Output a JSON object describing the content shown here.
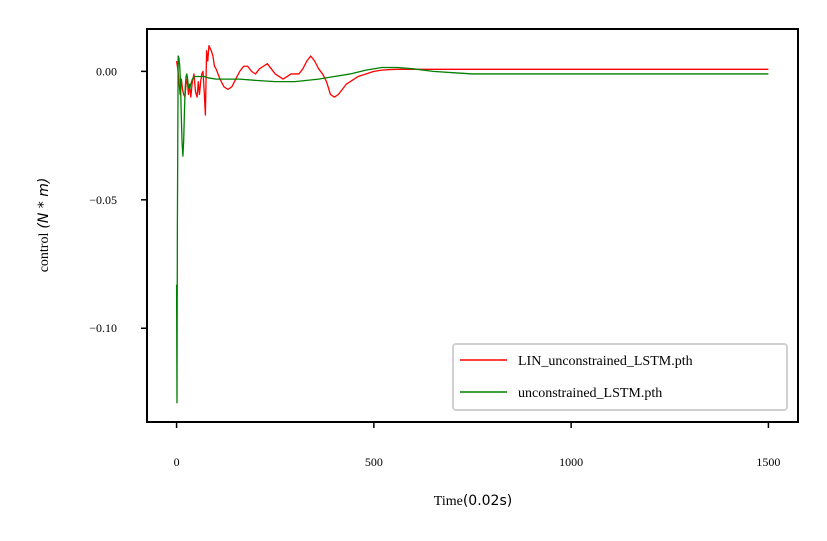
{
  "chart_data": {
    "type": "line",
    "title": "",
    "xlabel": "Time",
    "xlabel_unit": "(0.02s)",
    "ylabel": "control",
    "ylabel_unit": "(N * m)",
    "xlim": [
      -75,
      1575
    ],
    "ylim": [
      -0.1365,
      0.0165
    ],
    "xticks": [
      0,
      500,
      1000,
      1500
    ],
    "xtick_labels": [
      "0",
      "500",
      "1000",
      "1500"
    ],
    "yticks": [
      0.0,
      -0.05,
      -0.1
    ],
    "ytick_labels": [
      "0.00",
      "−0.05",
      "−0.10"
    ],
    "grid": false,
    "legend_position": "lower-right",
    "series": [
      {
        "name": "LIN_unconstrained_LSTM.pth",
        "color": "#ff0000",
        "x": [
          0,
          3,
          6,
          9,
          12,
          15,
          18,
          21,
          24,
          27,
          30,
          33,
          36,
          40,
          44,
          48,
          52,
          55,
          58,
          61,
          64,
          67,
          70,
          73,
          76,
          79,
          82,
          85,
          88,
          92,
          96,
          100,
          105,
          110,
          120,
          130,
          140,
          150,
          160,
          170,
          180,
          190,
          200,
          210,
          220,
          230,
          240,
          250,
          260,
          270,
          280,
          290,
          300,
          310,
          320,
          330,
          340,
          350,
          360,
          370,
          380,
          390,
          400,
          410,
          420,
          430,
          440,
          450,
          460,
          470,
          480,
          490,
          500,
          520,
          540,
          560,
          580,
          600,
          650,
          700,
          800,
          900,
          1000,
          1200,
          1500
        ],
        "y": [
          0.004,
          0.001,
          -0.004,
          -0.009,
          -0.003,
          -0.007,
          -0.009,
          -0.01,
          -0.005,
          -0.003,
          -0.009,
          -0.005,
          -0.01,
          -0.004,
          -0.001,
          -0.008,
          -0.01,
          -0.004,
          -0.009,
          -0.004,
          -0.001,
          0.0,
          -0.008,
          -0.017,
          0.008,
          0.004,
          0.01,
          0.009,
          0.008,
          0.006,
          0.002,
          0.001,
          -0.001,
          -0.003,
          -0.006,
          -0.007,
          -0.006,
          -0.003,
          0.0,
          0.002,
          0.002,
          0.0,
          -0.001,
          0.001,
          0.002,
          0.003,
          0.001,
          -0.001,
          -0.002,
          -0.003,
          -0.002,
          -0.001,
          -0.001,
          -0.001,
          0.001,
          0.004,
          0.006,
          0.004,
          0.001,
          -0.001,
          -0.004,
          -0.009,
          -0.01,
          -0.009,
          -0.007,
          -0.005,
          -0.004,
          -0.003,
          -0.002,
          -0.0015,
          -0.001,
          -0.0005,
          0.0,
          0.0005,
          0.0007,
          0.0008,
          0.0008,
          0.0008,
          0.0008,
          0.0008,
          0.0008,
          0.0008,
          0.0008,
          0.0008,
          0.0008
        ]
      },
      {
        "name": "unconstrained_LSTM.pth",
        "color": "#008000",
        "x": [
          0,
          1,
          2,
          4,
          6,
          8,
          10,
          12,
          14,
          16,
          18,
          20,
          22,
          24,
          26,
          28,
          30,
          33,
          36,
          40,
          45,
          50,
          55,
          60,
          70,
          80,
          100,
          130,
          160,
          200,
          250,
          280,
          300,
          330,
          360,
          400,
          440,
          480,
          520,
          560,
          600,
          650,
          700,
          750,
          800,
          900,
          1000,
          1200,
          1500
        ],
        "y": [
          -0.083,
          -0.129,
          -0.06,
          0.006,
          0.005,
          0.002,
          -0.005,
          -0.018,
          -0.028,
          -0.033,
          -0.027,
          -0.015,
          -0.006,
          -0.002,
          -0.001,
          -0.003,
          -0.006,
          -0.007,
          -0.005,
          -0.003,
          -0.002,
          -0.002,
          -0.002,
          -0.002,
          -0.002,
          -0.0025,
          -0.003,
          -0.003,
          -0.003,
          -0.0035,
          -0.004,
          -0.004,
          -0.004,
          -0.0035,
          -0.003,
          -0.002,
          -0.001,
          0.0005,
          0.0015,
          0.0015,
          0.001,
          0.0,
          -0.0005,
          -0.001,
          -0.001,
          -0.001,
          -0.001,
          -0.001,
          -0.001
        ]
      }
    ]
  }
}
